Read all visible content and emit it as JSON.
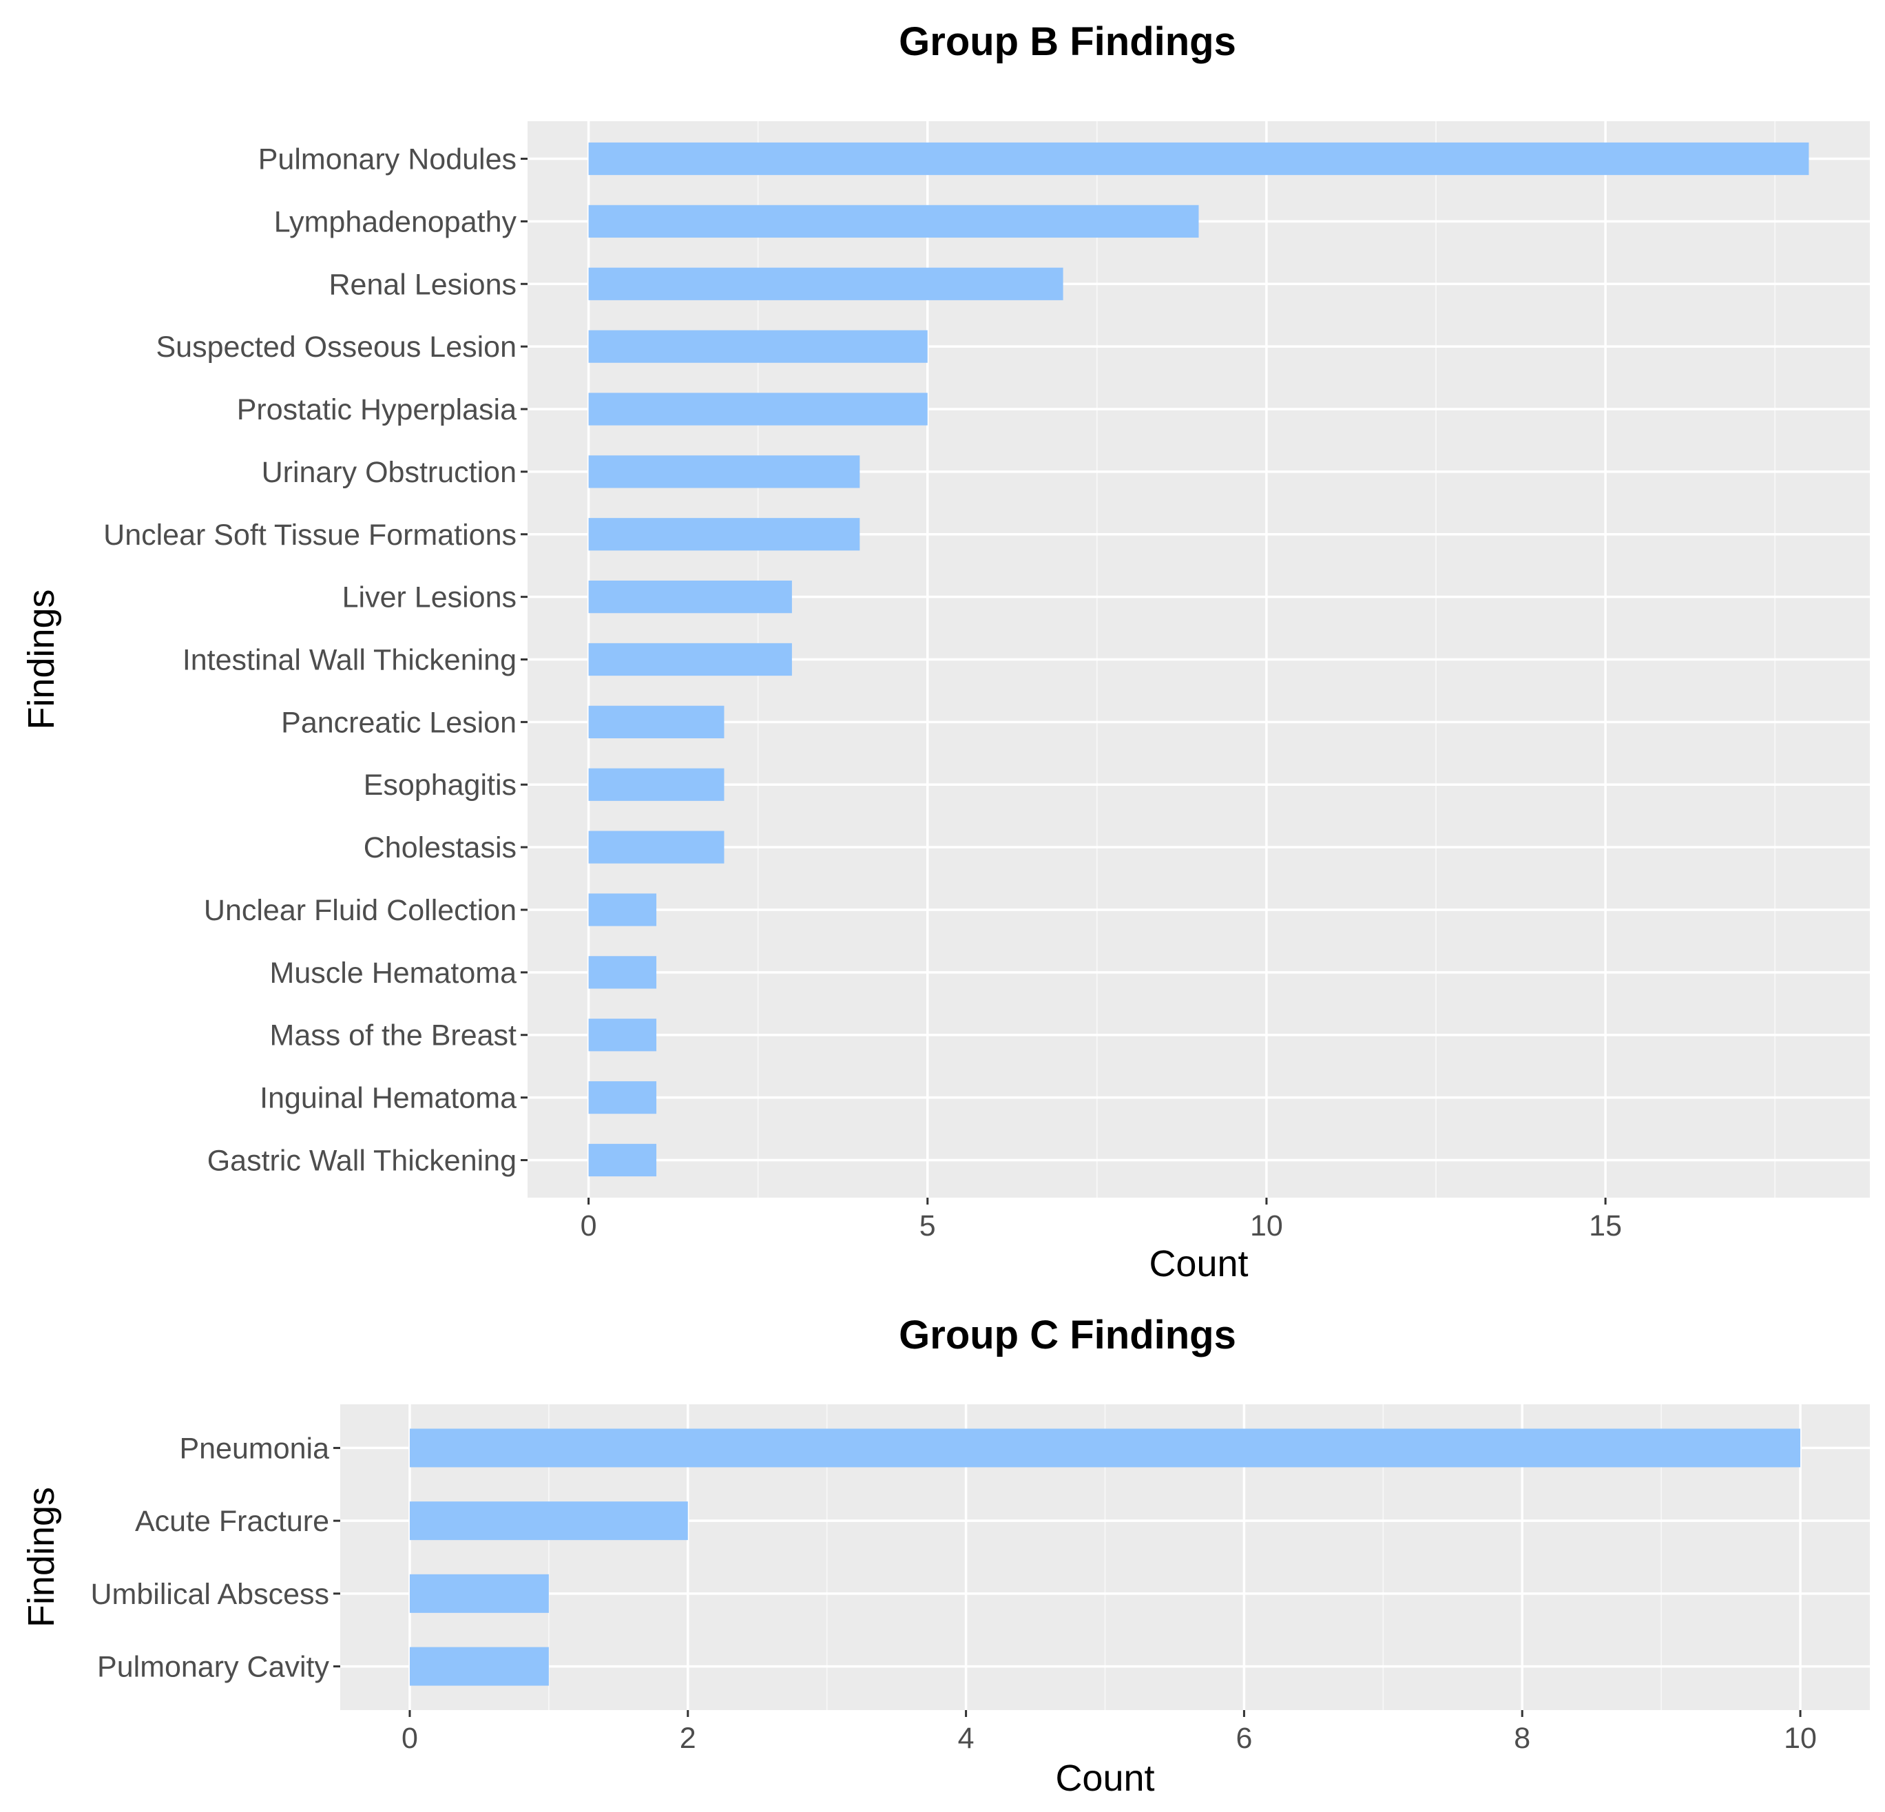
{
  "chart_data": [
    {
      "type": "bar",
      "orientation": "horizontal",
      "title": "Group B Findings",
      "xlabel": "Count",
      "ylabel": "Findings",
      "xlim": [
        -0.9,
        18.9
      ],
      "xticks": [
        0,
        5,
        10,
        15
      ],
      "grid": true,
      "bar_color": "#90C3FC",
      "panel_color": "#EBEBEB",
      "categories": [
        "Pulmonary Nodules",
        "Lymphadenopathy",
        "Renal Lesions",
        "Suspected Osseous Lesion",
        "Prostatic Hyperplasia",
        "Urinary Obstruction",
        "Unclear Soft Tissue Formations",
        "Liver Lesions",
        "Intestinal Wall Thickening",
        "Pancreatic Lesion",
        "Esophagitis",
        "Cholestasis",
        "Unclear Fluid Collection",
        "Muscle Hematoma",
        "Mass of the Breast",
        "Inguinal Hematoma",
        "Gastric Wall Thickening"
      ],
      "values": [
        18,
        9,
        7,
        5,
        5,
        4,
        4,
        3,
        3,
        2,
        2,
        2,
        1,
        1,
        1,
        1,
        1
      ]
    },
    {
      "type": "bar",
      "orientation": "horizontal",
      "title": "Group C Findings",
      "xlabel": "Count",
      "ylabel": "Findings",
      "xlim": [
        -0.5,
        10.5
      ],
      "xticks": [
        0,
        2,
        4,
        6,
        8,
        10
      ],
      "grid": true,
      "bar_color": "#90C3FC",
      "panel_color": "#EBEBEB",
      "categories": [
        "Pneumonia",
        "Acute Fracture",
        "Umbilical Abscess",
        "Pulmonary Cavity"
      ],
      "values": [
        10,
        2,
        1,
        1
      ]
    }
  ]
}
